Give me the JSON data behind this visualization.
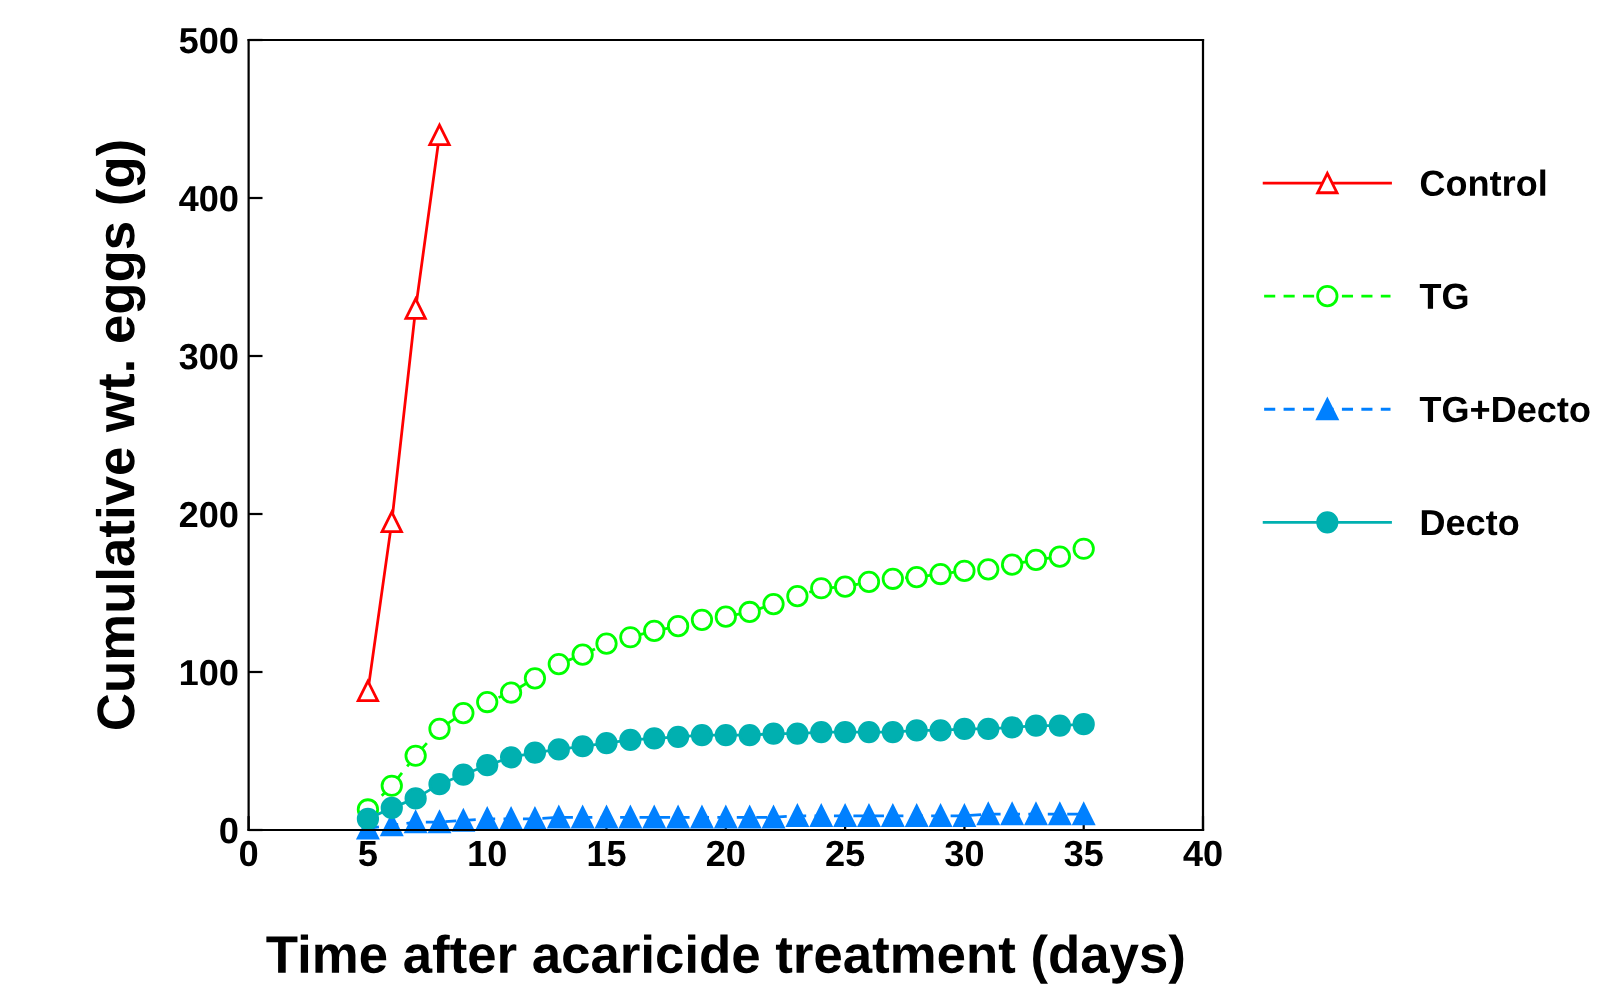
{
  "chart_data": {
    "type": "line",
    "xlabel": "Time after acaricide treatment (days)",
    "ylabel": "Cumulative wt. eggs (g)",
    "xlim": [
      0,
      40
    ],
    "xticks": [
      0,
      5,
      10,
      15,
      20,
      25,
      30,
      35,
      40
    ],
    "ylim": [
      0,
      500
    ],
    "yticks": [
      0,
      100,
      200,
      300,
      400,
      500
    ],
    "grid": false,
    "legend": "right",
    "series": [
      {
        "name": "Control",
        "color": "#ff0000",
        "marker": "triangle",
        "line_style": "solid",
        "x": [
          5,
          6,
          7,
          8
        ],
        "values": [
          88,
          195,
          330,
          440
        ]
      },
      {
        "name": "TG",
        "color": "#00ff00",
        "marker": "circle",
        "line_style": "dashed",
        "x": [
          5,
          6,
          7,
          8,
          9,
          10,
          11,
          12,
          13,
          14,
          15,
          16,
          17,
          18,
          19,
          20,
          21,
          22,
          23,
          24,
          25,
          26,
          27,
          28,
          29,
          30,
          31,
          32,
          33,
          34,
          35
        ],
        "values": [
          13,
          28,
          47,
          64,
          74,
          81,
          87,
          96,
          105,
          111,
          118,
          122,
          126,
          129,
          133,
          135,
          138,
          143,
          148,
          153,
          154,
          157,
          159,
          160,
          162,
          164,
          165,
          168,
          171,
          173,
          178
        ]
      },
      {
        "name": "TG+Decto",
        "color": "#0080ff",
        "marker": "triangle",
        "line_style": "dashed",
        "x": [
          5,
          6,
          7,
          8,
          9,
          10,
          11,
          12,
          13,
          14,
          15,
          16,
          17,
          18,
          19,
          20,
          21,
          22,
          23,
          24,
          25,
          26,
          27,
          28,
          29,
          30,
          31,
          32,
          33,
          34,
          35
        ],
        "values": [
          1,
          3,
          5,
          5,
          6,
          7,
          7,
          7,
          8,
          8,
          8,
          8,
          8,
          8,
          8,
          8,
          8,
          8,
          9,
          9,
          9,
          9,
          9,
          9,
          9,
          9,
          10,
          10,
          10,
          10,
          10
        ]
      },
      {
        "name": "Decto",
        "color": "#00b0b0",
        "marker": "circle",
        "line_style": "solid",
        "x": [
          5,
          6,
          7,
          8,
          9,
          10,
          11,
          12,
          13,
          14,
          15,
          16,
          17,
          18,
          19,
          20,
          21,
          22,
          23,
          24,
          25,
          26,
          27,
          28,
          29,
          30,
          31,
          32,
          33,
          34,
          35
        ],
        "values": [
          7,
          14,
          20,
          29,
          35,
          41,
          46,
          49,
          51,
          53,
          55,
          57,
          58,
          59,
          60,
          60,
          60,
          61,
          61,
          62,
          62,
          62,
          62,
          63,
          63,
          64,
          64,
          65,
          66,
          66,
          67
        ]
      }
    ]
  }
}
